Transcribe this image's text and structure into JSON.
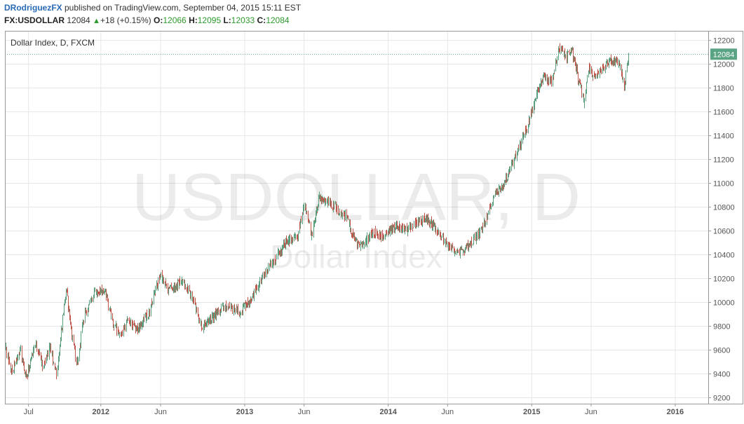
{
  "header": {
    "username": "DRodriguezFX",
    "published_text": " published on TradingView.com, September 04, 2015 15:11 EST",
    "symbol": "FX:USDOLLAR",
    "last": "12084",
    "change": "+18 (+0.15%)",
    "open_label": "O:",
    "open": "12066",
    "high_label": "H:",
    "high": "12095",
    "low_label": "L:",
    "low": "12033",
    "close_label": "C:",
    "close": "12084"
  },
  "colors": {
    "up": "#5a9e7e",
    "down": "#c1574c",
    "price_line": "#5aa383",
    "grid": "#e6e6e6",
    "price_tag": "#5aa383"
  },
  "chart_data": {
    "type": "candlestick",
    "title": "Dollar Index, D, FXCM",
    "watermark_symbol": "USDOLLAR, D",
    "watermark_name": "Dollar Index",
    "ylim": [
      9150,
      12280
    ],
    "yticks": [
      9200,
      9400,
      9600,
      9800,
      10000,
      10200,
      10400,
      10600,
      10800,
      11000,
      11200,
      11400,
      11600,
      11800,
      12000,
      12200
    ],
    "xlim": [
      "2011-05-02",
      "2016-03-25"
    ],
    "xticks": [
      {
        "label": "Jul",
        "date": "2011-07-01",
        "bold": false
      },
      {
        "label": "2012",
        "date": "2012-01-01",
        "bold": true
      },
      {
        "label": "Jun",
        "date": "2012-06-01",
        "bold": false
      },
      {
        "label": "2013",
        "date": "2013-01-01",
        "bold": true
      },
      {
        "label": "Jun",
        "date": "2013-06-01",
        "bold": false
      },
      {
        "label": "2014",
        "date": "2014-01-01",
        "bold": true
      },
      {
        "label": "Jun",
        "date": "2014-06-01",
        "bold": false
      },
      {
        "label": "2015",
        "date": "2015-01-01",
        "bold": true
      },
      {
        "label": "Jun",
        "date": "2015-06-01",
        "bold": false
      },
      {
        "label": "2016",
        "date": "2016-01-01",
        "bold": true
      }
    ],
    "last_price": 12084,
    "path": [
      [
        "2011-05-02",
        9620
      ],
      [
        "2011-05-20",
        9420
      ],
      [
        "2011-06-10",
        9600
      ],
      [
        "2011-06-25",
        9380
      ],
      [
        "2011-07-20",
        9660
      ],
      [
        "2011-08-05",
        9450
      ],
      [
        "2011-08-25",
        9630
      ],
      [
        "2011-09-10",
        9380
      ],
      [
        "2011-09-25",
        9850
      ],
      [
        "2011-10-05",
        10120
      ],
      [
        "2011-10-20",
        9700
      ],
      [
        "2011-11-01",
        9480
      ],
      [
        "2011-11-20",
        9900
      ],
      [
        "2011-12-15",
        10080
      ],
      [
        "2012-01-10",
        10100
      ],
      [
        "2012-02-01",
        9820
      ],
      [
        "2012-02-20",
        9720
      ],
      [
        "2012-03-10",
        9860
      ],
      [
        "2012-04-01",
        9780
      ],
      [
        "2012-05-01",
        9900
      ],
      [
        "2012-05-31",
        10250
      ],
      [
        "2012-06-20",
        10100
      ],
      [
        "2012-07-25",
        10180
      ],
      [
        "2012-08-20",
        10040
      ],
      [
        "2012-09-14",
        9790
      ],
      [
        "2012-10-10",
        9880
      ],
      [
        "2012-11-15",
        9980
      ],
      [
        "2012-12-20",
        9910
      ],
      [
        "2013-01-20",
        10050
      ],
      [
        "2013-02-20",
        10240
      ],
      [
        "2013-03-20",
        10370
      ],
      [
        "2013-04-15",
        10500
      ],
      [
        "2013-05-15",
        10560
      ],
      [
        "2013-06-01",
        10830
      ],
      [
        "2013-06-20",
        10560
      ],
      [
        "2013-07-08",
        10880
      ],
      [
        "2013-07-25",
        10850
      ],
      [
        "2013-08-20",
        10800
      ],
      [
        "2013-09-15",
        10720
      ],
      [
        "2013-10-10",
        10500
      ],
      [
        "2013-10-25",
        10470
      ],
      [
        "2013-11-20",
        10580
      ],
      [
        "2013-12-20",
        10560
      ],
      [
        "2014-01-20",
        10650
      ],
      [
        "2014-02-20",
        10600
      ],
      [
        "2014-03-15",
        10680
      ],
      [
        "2014-04-05",
        10700
      ],
      [
        "2014-04-25",
        10640
      ],
      [
        "2014-05-15",
        10560
      ],
      [
        "2014-06-05",
        10460
      ],
      [
        "2014-07-01",
        10420
      ],
      [
        "2014-07-25",
        10470
      ],
      [
        "2014-08-20",
        10580
      ],
      [
        "2014-09-10",
        10720
      ],
      [
        "2014-09-30",
        10920
      ],
      [
        "2014-10-20",
        10980
      ],
      [
        "2014-11-10",
        11150
      ],
      [
        "2014-11-30",
        11300
      ],
      [
        "2014-12-20",
        11480
      ],
      [
        "2015-01-10",
        11700
      ],
      [
        "2015-01-30",
        11900
      ],
      [
        "2015-02-20",
        11850
      ],
      [
        "2015-03-12",
        12150
      ],
      [
        "2015-03-30",
        12060
      ],
      [
        "2015-04-12",
        12120
      ],
      [
        "2015-05-01",
        11850
      ],
      [
        "2015-05-14",
        11680
      ],
      [
        "2015-05-26",
        11980
      ],
      [
        "2015-06-10",
        11880
      ],
      [
        "2015-06-30",
        11960
      ],
      [
        "2015-07-20",
        12030
      ],
      [
        "2015-08-10",
        12020
      ],
      [
        "2015-08-24",
        11820
      ],
      [
        "2015-09-04",
        12084
      ]
    ]
  }
}
